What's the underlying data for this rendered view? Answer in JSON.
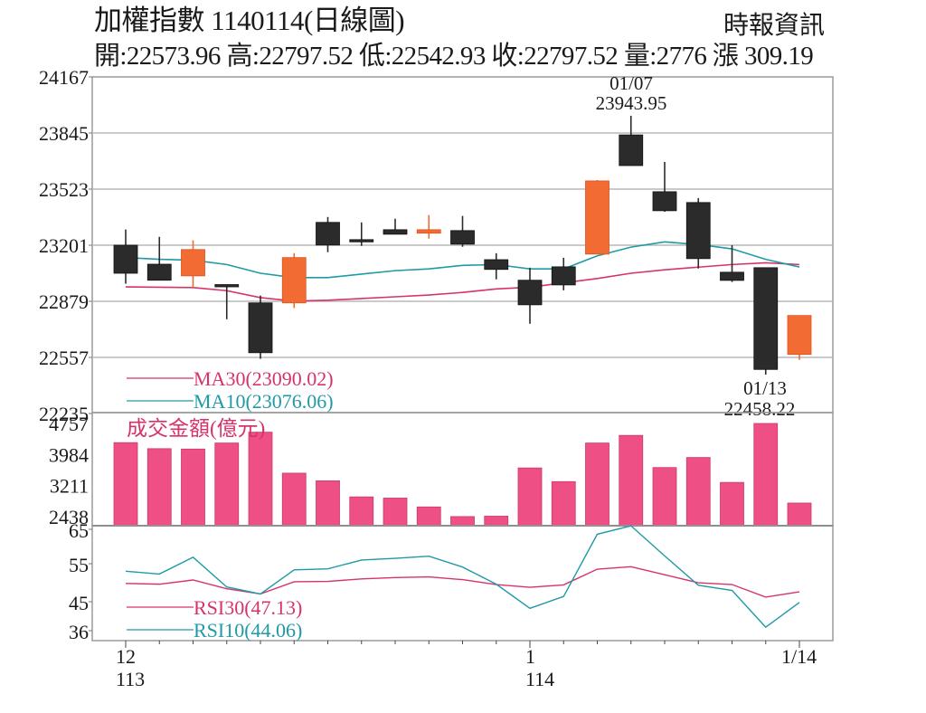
{
  "header": {
    "title": "加權指數 1140114(日線圖)",
    "source": "時報資訊",
    "ohlc_line": "開:22573.96 高:22797.52 低:22542.93 收:22797.52 量:2776 漲 309.19",
    "open": "22573.96",
    "high": "22797.52",
    "low": "22542.93",
    "close": "22797.52",
    "volume": "2776",
    "change": "309.19"
  },
  "colors": {
    "up_candle": "#f26b33",
    "down_candle": "#2b2b2b",
    "ma30": "#d6336c",
    "ma10": "#1f9aa6",
    "volume_bar": "#ee4f84",
    "grid": "#b8b8b8"
  },
  "panels": {
    "price": {
      "y_ticks": [
        "24167",
        "23845",
        "23523",
        "23201",
        "22879",
        "22557",
        "22235"
      ],
      "legend": {
        "ma30": "MA30(23090.02)",
        "ma10": "MA10(23076.06)"
      },
      "annotations": [
        {
          "date": "01/07",
          "value": "23943.95"
        },
        {
          "date": "01/13",
          "value": "22458.22"
        }
      ]
    },
    "volume": {
      "label": "成交金額(億元)",
      "y_ticks": [
        "4757",
        "3984",
        "3211",
        "2438"
      ]
    },
    "rsi": {
      "y_ticks": [
        "65",
        "55",
        "45",
        "36"
      ],
      "legend": {
        "rsi30": "RSI30(47.13)",
        "rsi10": "RSI10(44.06)"
      }
    },
    "x_axis": {
      "labels": [
        {
          "top": "12",
          "bottom": "113"
        },
        {
          "top": "1",
          "bottom": "114"
        },
        {
          "top": "1/14",
          "bottom": ""
        }
      ]
    }
  },
  "chart_data": [
    {
      "type": "candlestick",
      "title": "加權指數 1140114(日線圖)",
      "ylim": [
        22235,
        24167
      ],
      "y_ticks": [
        24167,
        23845,
        23523,
        23201,
        22879,
        22557,
        22235
      ],
      "grid": true,
      "candles": [
        {
          "open": 23040,
          "high": 23291,
          "low": 22980,
          "close": 23201,
          "color": "down"
        },
        {
          "open": 23092,
          "high": 23249,
          "low": 23045,
          "close": 23000,
          "color": "down"
        },
        {
          "open": 23025,
          "high": 23229,
          "low": 22959,
          "close": 23176,
          "color": "up"
        },
        {
          "open": 22975,
          "high": 22970,
          "low": 22776,
          "close": 22965,
          "color": "down"
        },
        {
          "open": 22870,
          "high": 22912,
          "low": 22549,
          "close": 22584,
          "color": "down"
        },
        {
          "open": 22870,
          "high": 23156,
          "low": 22840,
          "close": 23130,
          "color": "up"
        },
        {
          "open": 23332,
          "high": 23363,
          "low": 23161,
          "close": 23202,
          "color": "down"
        },
        {
          "open": 23233,
          "high": 23332,
          "low": 23197,
          "close": 23233,
          "color": "down"
        },
        {
          "open": 23290,
          "high": 23353,
          "low": 23270,
          "close": 23264,
          "color": "down"
        },
        {
          "open": 23270,
          "high": 23374,
          "low": 23239,
          "close": 23290,
          "color": "up"
        },
        {
          "open": 23285,
          "high": 23369,
          "low": 23192,
          "close": 23207,
          "color": "down"
        },
        {
          "open": 23118,
          "high": 23155,
          "low": 23005,
          "close": 23062,
          "color": "down"
        },
        {
          "open": 23000,
          "high": 23072,
          "low": 22750,
          "close": 22859,
          "color": "down"
        },
        {
          "open": 23077,
          "high": 23129,
          "low": 22942,
          "close": 22973,
          "color": "down"
        },
        {
          "open": 23150,
          "high": 23575,
          "low": 23150,
          "close": 23570,
          "color": "up"
        },
        {
          "open": 23834,
          "high": 23943.95,
          "low": 23658,
          "close": 23658,
          "color": "down"
        },
        {
          "open": 23508,
          "high": 23679,
          "low": 23393,
          "close": 23399,
          "color": "down"
        },
        {
          "open": 23446,
          "high": 23472,
          "low": 23067,
          "close": 23124,
          "color": "down"
        },
        {
          "open": 23046,
          "high": 23201,
          "low": 22990,
          "close": 22999,
          "color": "down"
        },
        {
          "open": 23072,
          "high": 23072,
          "low": 22458.22,
          "close": 22488,
          "color": "down"
        },
        {
          "open": 22573.96,
          "high": 22797.52,
          "low": 22542.93,
          "close": 22797.52,
          "color": "up"
        }
      ],
      "series": [
        {
          "name": "MA30(23090.02)",
          "values": [
            22962,
            22960,
            22958,
            22940,
            22900,
            22880,
            22885,
            22895,
            22905,
            22915,
            22930,
            22950,
            22960,
            22985,
            23010,
            23040,
            23060,
            23075,
            23090,
            23100,
            23090.02
          ]
        },
        {
          "name": "MA10(23076.06)",
          "values": [
            23130,
            23120,
            23115,
            23090,
            23040,
            23015,
            23015,
            23035,
            23055,
            23065,
            23085,
            23090,
            23065,
            23065,
            23140,
            23190,
            23220,
            23205,
            23180,
            23120,
            23076.06
          ]
        }
      ],
      "annotations": [
        "01/07 23943.95",
        "01/13 22458.22"
      ]
    },
    {
      "type": "bar",
      "title": "成交金額(億元)",
      "ylim": [
        2438,
        4757
      ],
      "y_ticks": [
        4757,
        3984,
        3211,
        2438
      ],
      "values": [
        4280,
        4130,
        4120,
        4270,
        4540,
        3520,
        3330,
        2930,
        2900,
        2680,
        2440,
        2450,
        3650,
        3310,
        4270,
        4460,
        3660,
        3910,
        3290,
        4757,
        2776
      ]
    },
    {
      "type": "line",
      "title": "RSI",
      "ylim": [
        33,
        66
      ],
      "y_ticks": [
        65,
        55,
        45,
        36
      ],
      "series": [
        {
          "name": "RSI30(47.13)",
          "values": [
            49.5,
            49.3,
            50.5,
            48.0,
            46.5,
            50.0,
            50.1,
            50.8,
            51.2,
            51.4,
            50.6,
            49.2,
            48.4,
            49.1,
            53.6,
            54.3,
            52.0,
            49.7,
            49.2,
            45.6,
            47.13
          ]
        },
        {
          "name": "RSI10(44.06)",
          "values": [
            53.0,
            52.2,
            57.0,
            48.5,
            46.5,
            53.4,
            53.7,
            56.2,
            56.7,
            57.3,
            54.2,
            49.3,
            42.4,
            45.8,
            63.6,
            66.0,
            57.4,
            49.0,
            47.5,
            37.0,
            44.06
          ]
        }
      ]
    }
  ]
}
